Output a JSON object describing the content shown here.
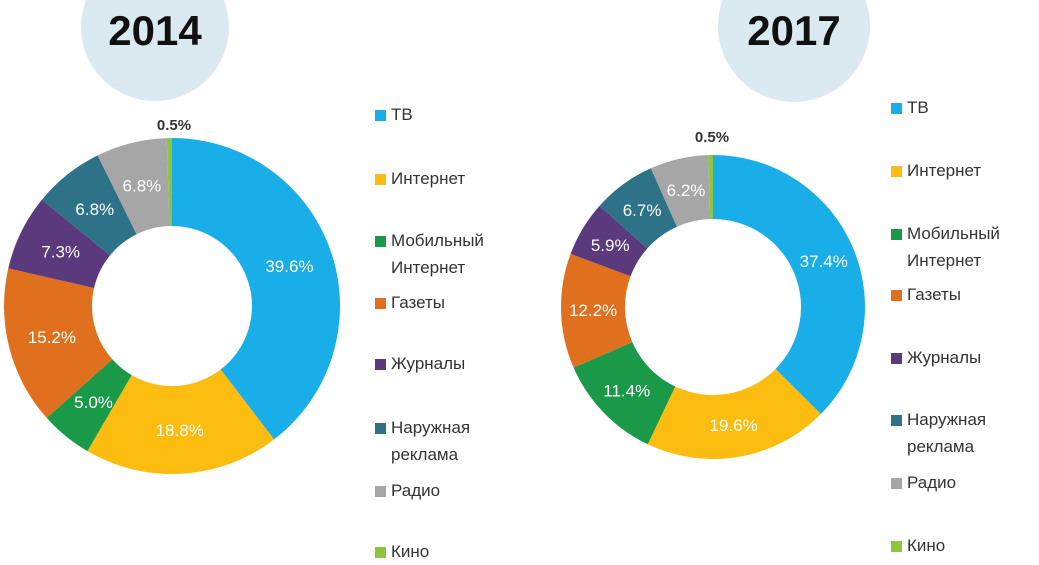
{
  "chart_data": [
    {
      "type": "pie",
      "variant": "donut",
      "title": "2014",
      "legend": "right",
      "categories": [
        "ТВ",
        "Интернет",
        "Мобильный Интернет",
        "Газеты",
        "Журналы",
        "Наружная реклама",
        "Радио",
        "Кино"
      ],
      "values": [
        39.6,
        18.8,
        5.0,
        15.2,
        7.3,
        6.8,
        6.8,
        0.5
      ],
      "labels": [
        "39.6%",
        "18.8%",
        "5.0%",
        "15.2%",
        "7.3%",
        "6.8%",
        "6.8%",
        "0.5%"
      ],
      "colors": [
        "#1aaee8",
        "#fcbc10",
        "#1a9a48",
        "#e0701e",
        "#5a3a7c",
        "#2e7288",
        "#a6a6a6",
        "#8cc640"
      ]
    },
    {
      "type": "pie",
      "variant": "donut",
      "title": "2017",
      "legend": "right",
      "categories": [
        "ТВ",
        "Интернет",
        "Мобильный Интернет",
        "Газеты",
        "Журналы",
        "Наружная реклама",
        "Радио",
        "Кино"
      ],
      "values": [
        37.4,
        19.6,
        11.4,
        12.2,
        5.9,
        6.7,
        6.2,
        0.5
      ],
      "labels": [
        "37.4%",
        "19.6%",
        "11.4%",
        "12.2%",
        "5.9%",
        "6.7%",
        "6.2%",
        "0.5%"
      ],
      "colors": [
        "#1aaee8",
        "#fcbc10",
        "#1a9a48",
        "#e0701e",
        "#5a3a7c",
        "#2e7288",
        "#a6a6a6",
        "#8cc640"
      ]
    }
  ],
  "legend_items": [
    {
      "label": "ТВ",
      "color": "#1aaee8"
    },
    {
      "label": "Интернет",
      "color": "#fcbc10"
    },
    {
      "label": "Мобильный Интернет",
      "color": "#1a9a48"
    },
    {
      "label": "Газеты",
      "color": "#e0701e"
    },
    {
      "label": "Журналы",
      "color": "#5a3a7c"
    },
    {
      "label": "Наружная реклама",
      "color": "#2e7288"
    },
    {
      "label": "Радио",
      "color": "#a6a6a6"
    },
    {
      "label": "Кино",
      "color": "#8cc640"
    }
  ],
  "colors": {
    "title_badge": "#dbeaf1",
    "slice_label_light": "#ffffff",
    "slice_label_dark": "#333333"
  }
}
